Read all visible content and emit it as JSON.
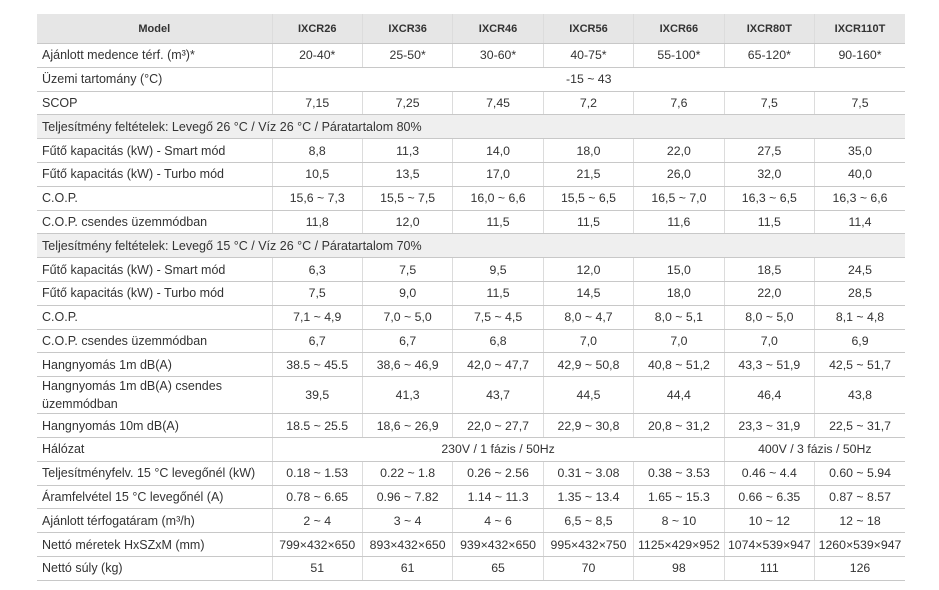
{
  "table": {
    "header": [
      "Model",
      "IXCR26",
      "IXCR36",
      "IXCR46",
      "IXCR56",
      "IXCR66",
      "IXCR80T",
      "IXCR110T"
    ],
    "rows": [
      {
        "label": "Ajánlott medence térf. (m³)*",
        "values": [
          "20-40*",
          "25-50*",
          "30-60*",
          "40-75*",
          "55-100*",
          "65-120*",
          "90-160*"
        ]
      },
      {
        "label": "Üzemi tartomány (°C)",
        "values": [
          "-15 ~ 43"
        ]
      },
      {
        "label": "SCOP",
        "values": [
          "7,15",
          "7,25",
          "7,45",
          "7,2",
          "7,6",
          "7,5",
          "7,5"
        ]
      },
      {
        "label": "Teljesítmény feltételek: Levegő 26 °C / Víz 26 °C / Páratartalom 80%"
      },
      {
        "label": "Fűtő kapacitás (kW) - Smart mód",
        "values": [
          "8,8",
          "11,3",
          "14,0",
          "18,0",
          "22,0",
          "27,5",
          "35,0"
        ]
      },
      {
        "label": "Fűtő kapacitás (kW) - Turbo mód",
        "values": [
          "10,5",
          "13,5",
          "17,0",
          "21,5",
          "26,0",
          "32,0",
          "40,0"
        ]
      },
      {
        "label": "C.O.P.",
        "values": [
          "15,6 ~ 7,3",
          "15,5 ~ 7,5",
          "16,0 ~ 6,6",
          "15,5 ~ 6,5",
          "16,5 ~ 7,0",
          "16,3 ~ 6,5",
          "16,3 ~ 6,6"
        ]
      },
      {
        "label": "C.O.P. csendes üzemmódban",
        "values": [
          "11,8",
          "12,0",
          "11,5",
          "11,5",
          "11,6",
          "11,5",
          "11,4"
        ]
      },
      {
        "label": "Teljesítmény feltételek: Levegő 15 °C / Víz 26 °C / Páratartalom 70%"
      },
      {
        "label": "Fűtő kapacitás (kW) - Smart mód",
        "values": [
          "6,3",
          "7,5",
          "9,5",
          "12,0",
          "15,0",
          "18,5",
          "24,5"
        ]
      },
      {
        "label": "Fűtő kapacitás (kW) - Turbo mód",
        "values": [
          "7,5",
          "9,0",
          "11,5",
          "14,5",
          "18,0",
          "22,0",
          "28,5"
        ]
      },
      {
        "label": "C.O.P.",
        "values": [
          "7,1 ~ 4,9",
          "7,0 ~ 5,0",
          "7,5 ~ 4,5",
          "8,0 ~ 4,7",
          "8,0 ~ 5,1",
          "8,0 ~ 5,0",
          "8,1 ~ 4,8"
        ]
      },
      {
        "label": "C.O.P. csendes üzemmódban",
        "values": [
          "6,7",
          "6,7",
          "6,8",
          "7,0",
          "7,0",
          "7,0",
          "6,9"
        ]
      },
      {
        "label": "Hangnyomás 1m dB(A)",
        "values": [
          "38.5 ~ 45.5",
          "38,6 ~ 46,9",
          "42,0 ~ 47,7",
          "42,9 ~ 50,8",
          "40,8 ~ 51,2",
          "43,3 ~ 51,9",
          "42,5 ~ 51,7"
        ]
      },
      {
        "label": "Hangnyomás 1m dB(A) csendes üzemmódban",
        "values": [
          "39,5",
          "41,3",
          "43,7",
          "44,5",
          "44,4",
          "46,4",
          "43,8"
        ]
      },
      {
        "label": "Hangnyomás 10m dB(A)",
        "values": [
          "18.5 ~ 25.5",
          "18,6 ~ 26,9",
          "22,0 ~ 27,7",
          "22,9 ~ 30,8",
          "20,8 ~ 31,2",
          "23,3 ~ 31,9",
          "22,5 ~ 31,7"
        ]
      },
      {
        "label": "Hálózat",
        "values": [
          "230V / 1 fázis / 50Hz",
          "400V / 3 fázis / 50Hz"
        ]
      },
      {
        "label": "Teljesítményfelv. 15 °C levegőnél (kW)",
        "values": [
          "0.18 ~ 1.53",
          "0.22 ~ 1.8",
          "0.26 ~ 2.56",
          "0.31 ~ 3.08",
          "0.38 ~ 3.53",
          "0.46 ~ 4.4",
          "0.60 ~ 5.94"
        ]
      },
      {
        "label": "Áramfelvétel 15 °C levegőnél (A)",
        "values": [
          "0.78 ~ 6.65",
          "0.96 ~ 7.82",
          "1.14 ~ 11.3",
          "1.35 ~ 13.4",
          "1.65 ~ 15.3",
          "0.66 ~ 6.35",
          "0.87 ~ 8.57"
        ]
      },
      {
        "label": "Ajánlott térfogatáram (m³/h)",
        "values": [
          "2 ~ 4",
          "3 ~ 4",
          "4 ~ 6",
          "6,5 ~ 8,5",
          "8 ~ 10",
          "10 ~ 12",
          "12 ~ 18"
        ]
      },
      {
        "label": "Nettó méretek HxSZxM (mm)",
        "values": [
          "799×432×650",
          "893×432×650",
          "939×432×650",
          "995×432×750",
          "1125×429×952",
          "1074×539×947",
          "1260×539×947"
        ]
      },
      {
        "label": "Nettó súly (kg)",
        "values": [
          "51",
          "61",
          "65",
          "70",
          "98",
          "111",
          "126"
        ]
      }
    ]
  }
}
